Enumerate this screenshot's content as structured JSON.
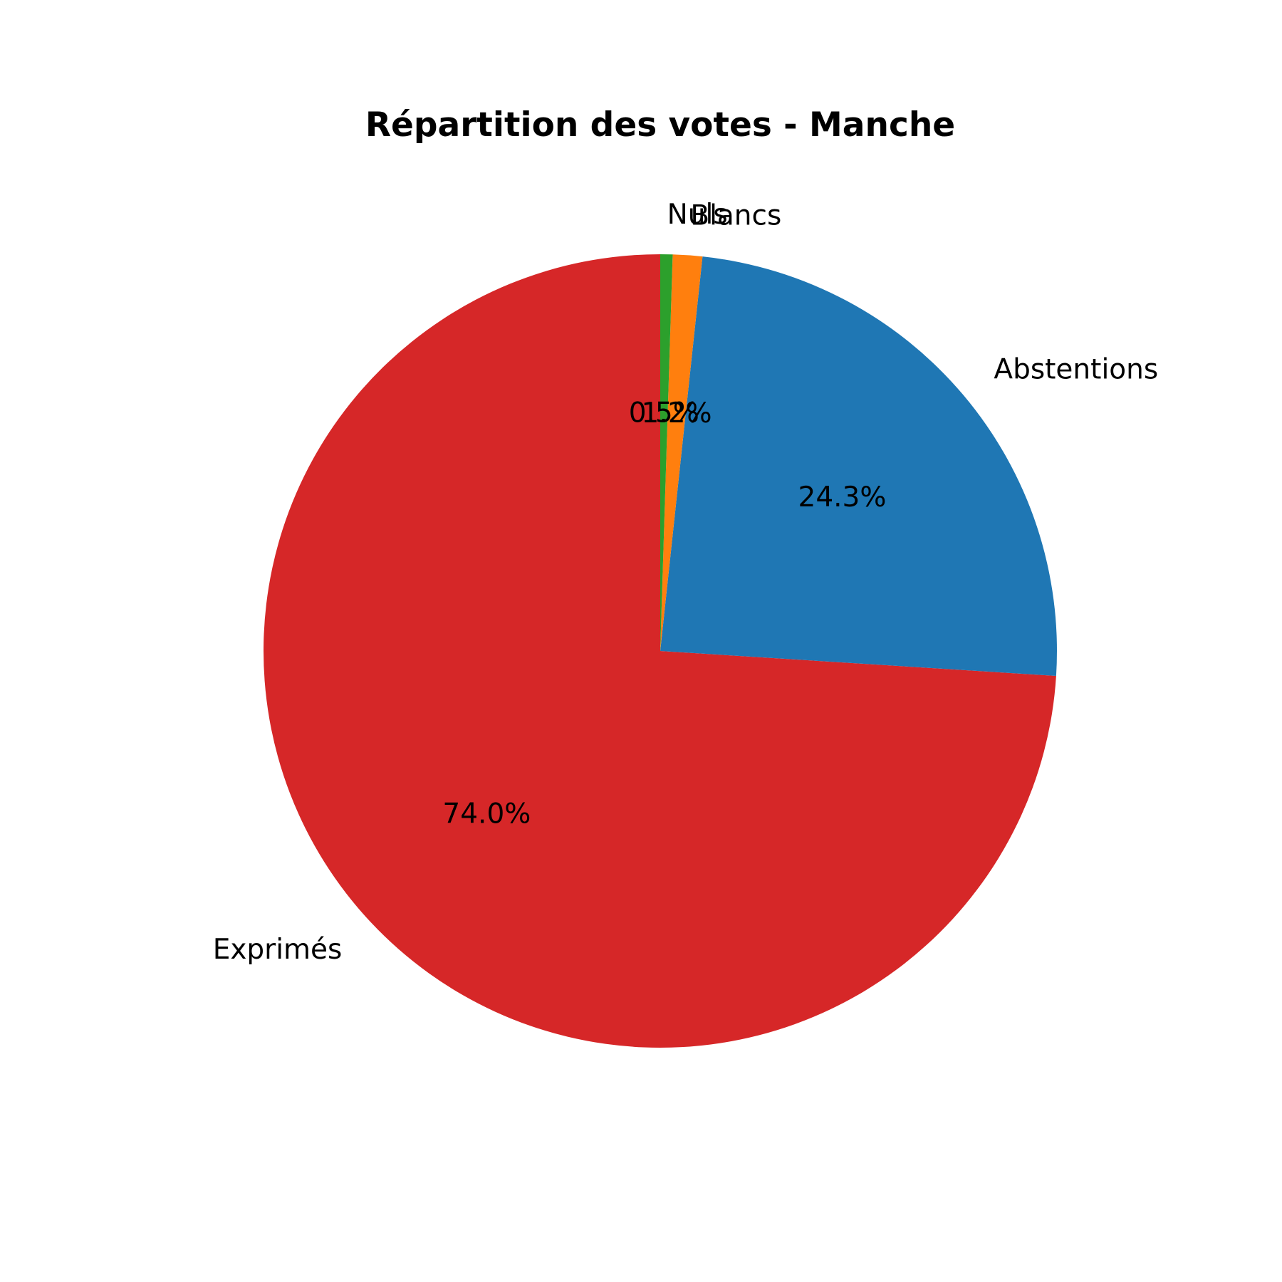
{
  "chart_data": {
    "type": "pie",
    "title": "Répartition des votes - Manche",
    "categories": [
      "Exprimés",
      "Abstentions",
      "Blancs",
      "Nuls"
    ],
    "values": [
      74.0,
      24.3,
      1.2,
      0.5
    ],
    "percent_labels": [
      "74.0%",
      "24.3%",
      "1.2%",
      "0.5%"
    ],
    "colors": [
      "#d62728",
      "#1f77b4",
      "#ff7f0e",
      "#2ca02c"
    ],
    "start_angle_deg": 90,
    "direction": "counterclockwise",
    "legend": "none"
  }
}
